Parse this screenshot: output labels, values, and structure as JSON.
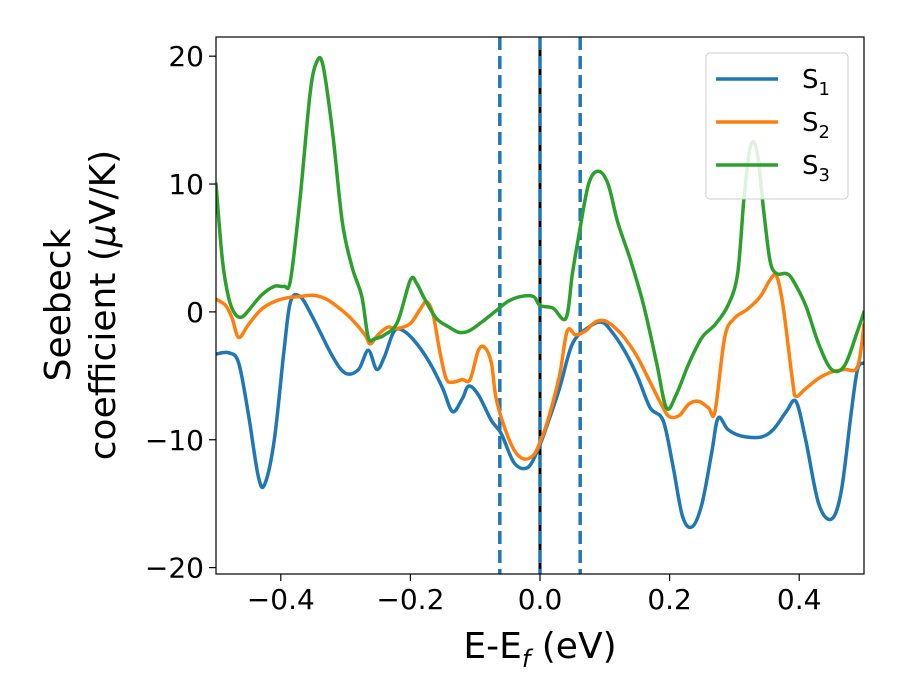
{
  "chart_data": {
    "type": "line",
    "xlabel": "E-E",
    "xlabel_sub": "f",
    "xlabel_unit": " (eV)",
    "ylabel_line1": "Seebeck",
    "ylabel_line2": "coefficient  (",
    "ylabel_mu": "μ",
    "ylabel_unit": "V/K)",
    "xlim": [
      -0.5,
      0.5
    ],
    "ylim": [
      -20.5,
      21.5
    ],
    "xticks": [
      -0.4,
      -0.2,
      0.0,
      0.2,
      0.4
    ],
    "xtick_labels": [
      "−0.4",
      "−0.2",
      "0.0",
      "0.2",
      "0.4"
    ],
    "yticks": [
      -20,
      -10,
      0,
      10,
      20
    ],
    "ytick_labels": [
      "−20",
      "−10",
      "0",
      "10",
      "20"
    ],
    "grid": false,
    "legend_position": "top-right",
    "vlines": [
      {
        "x": -0.062,
        "style": "dashed",
        "color": "#1f77b4"
      },
      {
        "x": 0.0,
        "style": "solid",
        "color": "#000000"
      },
      {
        "x": 0.0,
        "style": "dashed",
        "color": "#1f77b4"
      },
      {
        "x": 0.062,
        "style": "dashed",
        "color": "#1f77b4"
      }
    ],
    "series": [
      {
        "name": "S",
        "sub": "1",
        "color": "#1f77b4",
        "points": [
          [
            -0.5,
            -3.3
          ],
          [
            -0.48,
            -3.2
          ],
          [
            -0.465,
            -4
          ],
          [
            -0.45,
            -8
          ],
          [
            -0.435,
            -12.8
          ],
          [
            -0.425,
            -13.5
          ],
          [
            -0.41,
            -10
          ],
          [
            -0.395,
            -3
          ],
          [
            -0.385,
            0.8
          ],
          [
            -0.37,
            1.2
          ],
          [
            -0.35,
            -0.5
          ],
          [
            -0.32,
            -3.5
          ],
          [
            -0.3,
            -4.8
          ],
          [
            -0.28,
            -4.5
          ],
          [
            -0.265,
            -3
          ],
          [
            -0.252,
            -4.5
          ],
          [
            -0.24,
            -3.5
          ],
          [
            -0.225,
            -1.5
          ],
          [
            -0.21,
            -1.5
          ],
          [
            -0.19,
            -2.5
          ],
          [
            -0.17,
            -4
          ],
          [
            -0.15,
            -6
          ],
          [
            -0.135,
            -7.8
          ],
          [
            -0.12,
            -6.8
          ],
          [
            -0.11,
            -5.8
          ],
          [
            -0.095,
            -6.5
          ],
          [
            -0.075,
            -8.5
          ],
          [
            -0.06,
            -9.5
          ],
          [
            -0.04,
            -11.8
          ],
          [
            -0.02,
            -12.2
          ],
          [
            -0.005,
            -11
          ],
          [
            0.01,
            -9
          ],
          [
            0.03,
            -6
          ],
          [
            0.05,
            -2.5
          ],
          [
            0.075,
            -1.2
          ],
          [
            0.095,
            -0.8
          ],
          [
            0.11,
            -1.5
          ],
          [
            0.13,
            -3
          ],
          [
            0.15,
            -5
          ],
          [
            0.17,
            -7.5
          ],
          [
            0.19,
            -8.5
          ],
          [
            0.205,
            -12
          ],
          [
            0.22,
            -16
          ],
          [
            0.235,
            -16.8
          ],
          [
            0.25,
            -15
          ],
          [
            0.265,
            -11
          ],
          [
            0.275,
            -8.3
          ],
          [
            0.29,
            -9.2
          ],
          [
            0.31,
            -9.7
          ],
          [
            0.34,
            -9.8
          ],
          [
            0.36,
            -9.2
          ],
          [
            0.38,
            -7.8
          ],
          [
            0.395,
            -7
          ],
          [
            0.41,
            -10
          ],
          [
            0.43,
            -15
          ],
          [
            0.45,
            -16.2
          ],
          [
            0.465,
            -14
          ],
          [
            0.48,
            -8
          ],
          [
            0.49,
            -4.5
          ],
          [
            0.5,
            -4
          ]
        ]
      },
      {
        "name": "S",
        "sub": "2",
        "color": "#ff7f0e",
        "points": [
          [
            -0.5,
            1
          ],
          [
            -0.485,
            0.5
          ],
          [
            -0.475,
            -0.5
          ],
          [
            -0.465,
            -2
          ],
          [
            -0.45,
            -1
          ],
          [
            -0.43,
            0.2
          ],
          [
            -0.41,
            0.8
          ],
          [
            -0.39,
            1.1
          ],
          [
            -0.37,
            1.2
          ],
          [
            -0.35,
            1.3
          ],
          [
            -0.33,
            1.0
          ],
          [
            -0.31,
            0.3
          ],
          [
            -0.29,
            -0.6
          ],
          [
            -0.27,
            -1.8
          ],
          [
            -0.262,
            -2.5
          ],
          [
            -0.25,
            -1.8
          ],
          [
            -0.235,
            -1.2
          ],
          [
            -0.22,
            -1.3
          ],
          [
            -0.2,
            -0.9
          ],
          [
            -0.185,
            0.2
          ],
          [
            -0.175,
            0.8
          ],
          [
            -0.165,
            -0.2
          ],
          [
            -0.155,
            -3
          ],
          [
            -0.145,
            -5.2
          ],
          [
            -0.135,
            -5.5
          ],
          [
            -0.12,
            -5.3
          ],
          [
            -0.108,
            -5.3
          ],
          [
            -0.095,
            -3
          ],
          [
            -0.085,
            -2.8
          ],
          [
            -0.075,
            -4
          ],
          [
            -0.068,
            -6.7
          ],
          [
            -0.055,
            -9
          ],
          [
            -0.04,
            -10.8
          ],
          [
            -0.025,
            -11.5
          ],
          [
            -0.01,
            -11.2
          ],
          [
            0.0,
            -10.2
          ],
          [
            0.012,
            -8.5
          ],
          [
            0.03,
            -5
          ],
          [
            0.042,
            -1.5
          ],
          [
            0.055,
            -1.8
          ],
          [
            0.07,
            -1.5
          ],
          [
            0.085,
            -0.8
          ],
          [
            0.1,
            -0.7
          ],
          [
            0.115,
            -1.2
          ],
          [
            0.13,
            -2
          ],
          [
            0.15,
            -3.5
          ],
          [
            0.17,
            -5.5
          ],
          [
            0.19,
            -7.5
          ],
          [
            0.2,
            -8.2
          ],
          [
            0.215,
            -8.1
          ],
          [
            0.23,
            -7.2
          ],
          [
            0.245,
            -7
          ],
          [
            0.26,
            -7.5
          ],
          [
            0.27,
            -7.8
          ],
          [
            0.285,
            -2
          ],
          [
            0.3,
            -0.5
          ],
          [
            0.32,
            0.2
          ],
          [
            0.34,
            1.2
          ],
          [
            0.355,
            2.5
          ],
          [
            0.365,
            2.8
          ],
          [
            0.375,
            0.5
          ],
          [
            0.39,
            -5.5
          ],
          [
            0.395,
            -6.6
          ],
          [
            0.41,
            -6
          ],
          [
            0.43,
            -5.2
          ],
          [
            0.45,
            -4.7
          ],
          [
            0.47,
            -4.5
          ],
          [
            0.49,
            -4.3
          ],
          [
            0.5,
            -1
          ]
        ]
      },
      {
        "name": "S",
        "sub": "3",
        "color": "#2ca02c",
        "points": [
          [
            -0.5,
            10
          ],
          [
            -0.49,
            4
          ],
          [
            -0.48,
            1
          ],
          [
            -0.47,
            -0.2
          ],
          [
            -0.46,
            -0.4
          ],
          [
            -0.45,
            0.1
          ],
          [
            -0.43,
            1.3
          ],
          [
            -0.41,
            2
          ],
          [
            -0.395,
            2
          ],
          [
            -0.385,
            2.5
          ],
          [
            -0.37,
            9
          ],
          [
            -0.355,
            17
          ],
          [
            -0.345,
            19.5
          ],
          [
            -0.335,
            19.3
          ],
          [
            -0.32,
            14
          ],
          [
            -0.305,
            7
          ],
          [
            -0.29,
            3.5
          ],
          [
            -0.275,
            1.2
          ],
          [
            -0.265,
            -2
          ],
          [
            -0.255,
            -2.1
          ],
          [
            -0.24,
            -1.8
          ],
          [
            -0.22,
            -0.8
          ],
          [
            -0.2,
            2.5
          ],
          [
            -0.19,
            2.2
          ],
          [
            -0.18,
            1.2
          ],
          [
            -0.16,
            -0.5
          ],
          [
            -0.14,
            -1.2
          ],
          [
            -0.125,
            -1.6
          ],
          [
            -0.11,
            -1.5
          ],
          [
            -0.09,
            -0.8
          ],
          [
            -0.07,
            0
          ],
          [
            -0.05,
            0.8
          ],
          [
            -0.03,
            1.2
          ],
          [
            -0.01,
            1.2
          ],
          [
            0.0,
            0.5
          ],
          [
            0.02,
            0.3
          ],
          [
            0.04,
            -0.5
          ],
          [
            0.05,
            3
          ],
          [
            0.06,
            6
          ],
          [
            0.075,
            10
          ],
          [
            0.09,
            11
          ],
          [
            0.105,
            10
          ],
          [
            0.12,
            7
          ],
          [
            0.14,
            4
          ],
          [
            0.16,
            0.5
          ],
          [
            0.18,
            -4
          ],
          [
            0.195,
            -7.5
          ],
          [
            0.21,
            -6.5
          ],
          [
            0.23,
            -4
          ],
          [
            0.25,
            -2
          ],
          [
            0.27,
            -1
          ],
          [
            0.29,
            0.5
          ],
          [
            0.305,
            3
          ],
          [
            0.315,
            9
          ],
          [
            0.325,
            13
          ],
          [
            0.335,
            12.5
          ],
          [
            0.345,
            8
          ],
          [
            0.355,
            4
          ],
          [
            0.365,
            3
          ],
          [
            0.38,
            3
          ],
          [
            0.39,
            2.5
          ],
          [
            0.41,
            0.5
          ],
          [
            0.43,
            -2.5
          ],
          [
            0.45,
            -4.5
          ],
          [
            0.47,
            -4.2
          ],
          [
            0.49,
            -1.5
          ],
          [
            0.5,
            0
          ]
        ]
      }
    ]
  }
}
